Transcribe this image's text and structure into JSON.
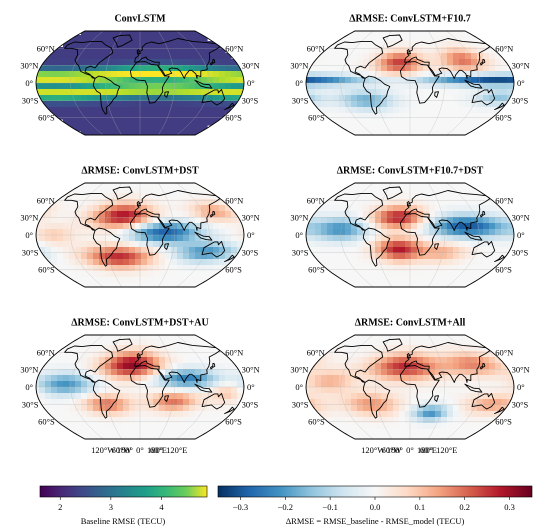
{
  "panels": [
    {
      "title": "ConvLSTM",
      "lat_labels_left": [
        "60°N",
        "30°N",
        "0°",
        "30°S",
        "60°S"
      ],
      "lat_labels_right": [
        "60°N",
        "30°N",
        "0°",
        "30°S",
        "60°S"
      ],
      "lon_labels": [],
      "colormap": "viridis",
      "field": "baseline"
    },
    {
      "title": "ΔRMSE: ConvLSTM+F10.7",
      "lat_labels_left": [
        "60°N",
        "30°N",
        "0°",
        "30°S",
        "60°S"
      ],
      "lat_labels_right": [
        "60°N",
        "30°N",
        "0°",
        "30°S",
        "60°S"
      ],
      "lon_labels": [],
      "colormap": "RdBu_r",
      "field": "delta_f107"
    },
    {
      "title": "ΔRMSE: ConvLSTM+DST",
      "lat_labels_left": [
        "60°N",
        "30°N",
        "0°",
        "30°S",
        "60°S"
      ],
      "lat_labels_right": [
        "60°N",
        "30°N",
        "0°",
        "30°S",
        "60°S"
      ],
      "lon_labels": [],
      "colormap": "RdBu_r",
      "field": "delta_dst"
    },
    {
      "title": "ΔRMSE: ConvLSTM+F10.7+DST",
      "lat_labels_left": [
        "60°N",
        "30°N",
        "0°",
        "30°S",
        "60°S"
      ],
      "lat_labels_right": [
        "60°N",
        "30°N",
        "0°",
        "30°S",
        "60°S"
      ],
      "lon_labels": [],
      "colormap": "RdBu_r",
      "field": "delta_f107_dst"
    },
    {
      "title": "ΔRMSE: ConvLSTM+DST+AU",
      "lat_labels_left": [
        "60°N",
        "30°N",
        "0°",
        "30°S",
        "60°S"
      ],
      "lat_labels_right": [
        "60°N",
        "30°N",
        "0°",
        "30°S",
        "60°S"
      ],
      "lon_labels": [
        "180°",
        "120°W",
        "60°W",
        "0°",
        "60°E",
        "120°E",
        "180°"
      ],
      "colormap": "RdBu_r",
      "field": "delta_dst_au"
    },
    {
      "title": "ΔRMSE: ConvLSTM+All",
      "lat_labels_left": [
        "60°N",
        "30°N",
        "0°",
        "30°S",
        "60°S"
      ],
      "lat_labels_right": [
        "60°N",
        "30°N",
        "0°",
        "30°S",
        "60°S"
      ],
      "lon_labels": [
        "180°",
        "120°W",
        "60°W",
        "0°",
        "60°E",
        "120°E",
        "180°"
      ],
      "colormap": "RdBu_r",
      "field": "delta_all"
    }
  ],
  "colorbars": [
    {
      "label": "Baseline RMSE (TECU)",
      "colormap": "viridis",
      "range": [
        1.6,
        4.9
      ],
      "ticks": [
        "2",
        "3",
        "4"
      ],
      "tick_values": [
        2,
        3,
        4
      ]
    },
    {
      "label": "ΔRMSE = RMSE_baseline - RMSE_model (TECU)",
      "colormap": "RdBu_r",
      "range": [
        -0.35,
        0.35
      ],
      "ticks": [
        "−0.3",
        "−0.2",
        "−0.1",
        "0.0",
        "0.1",
        "0.2",
        "0.3"
      ],
      "tick_values": [
        -0.3,
        -0.2,
        -0.1,
        0.0,
        0.1,
        0.2,
        0.3
      ]
    }
  ],
  "colors": {
    "coastline": "#000000",
    "background": "#ffffff",
    "graticule": "#b0b0b0"
  }
}
